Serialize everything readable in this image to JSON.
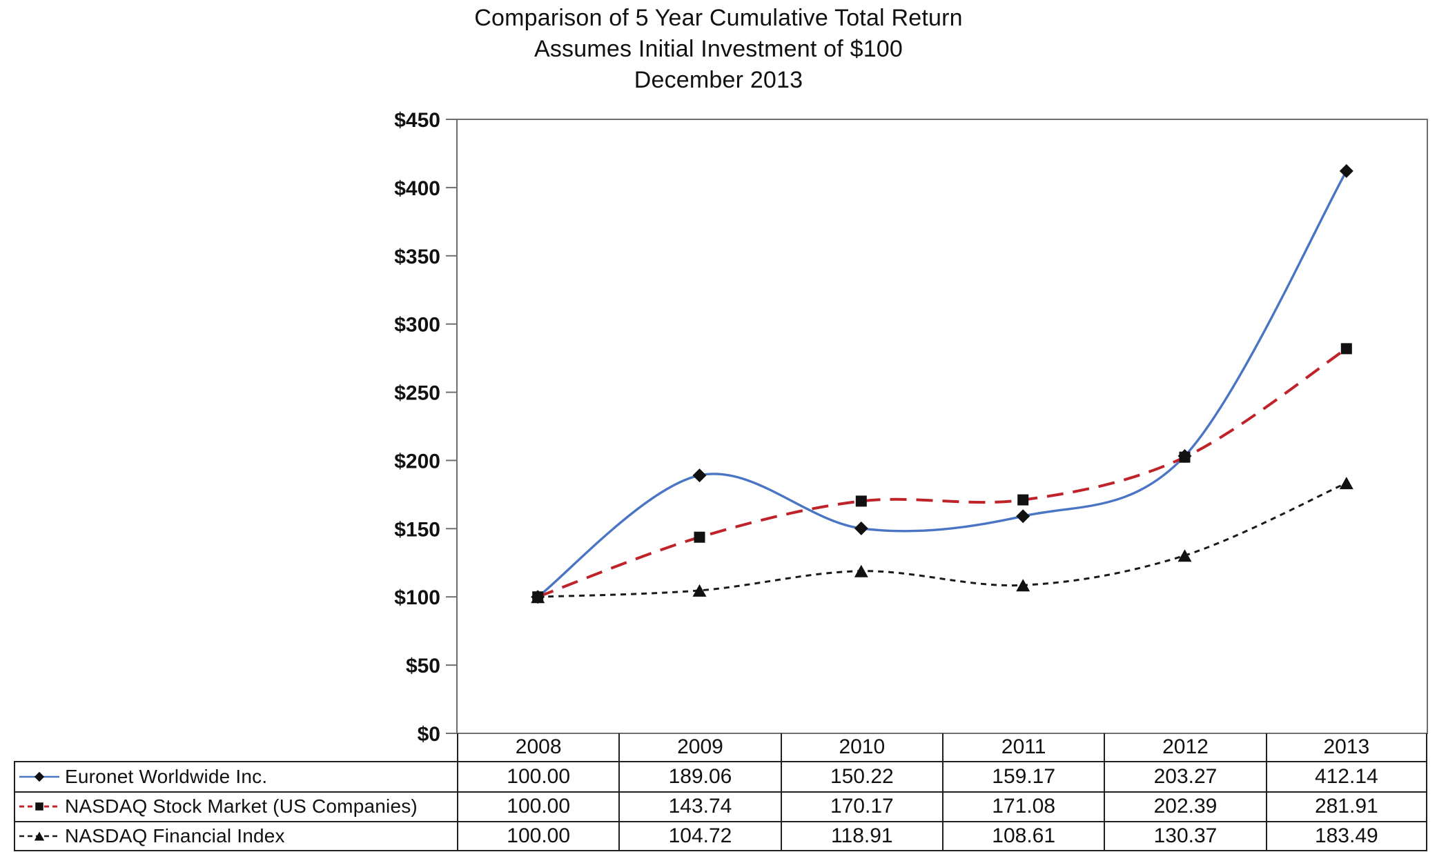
{
  "title": {
    "line1": "Comparison of 5 Year Cumulative Total Return",
    "line2": "Assumes Initial Investment of $100",
    "line3": "December 2013"
  },
  "chart_data": {
    "type": "line",
    "x": [
      "2008",
      "2009",
      "2010",
      "2011",
      "2012",
      "2013"
    ],
    "series": [
      {
        "name": "Euronet Worldwide Inc.",
        "values": [
          100.0,
          189.06,
          150.22,
          159.17,
          203.27,
          412.14
        ],
        "color": "#4a74c4",
        "line_style": "solid",
        "marker": "diamond",
        "marker_color": "#111111"
      },
      {
        "name": "NASDAQ Stock Market (US Companies)",
        "values": [
          100.0,
          143.74,
          170.17,
          171.08,
          202.39,
          281.91
        ],
        "color": "#c0222a",
        "line_style": "dashed",
        "marker": "square",
        "marker_color": "#111111"
      },
      {
        "name": "NASDAQ Financial Index",
        "values": [
          100.0,
          104.72,
          118.91,
          108.61,
          130.37,
          183.49
        ],
        "color": "#1a1a1a",
        "line_style": "dotted",
        "marker": "triangle",
        "marker_color": "#111111"
      }
    ],
    "ylim": [
      0,
      450
    ],
    "ytick_step": 50,
    "ytick_labels": [
      "$0",
      "$50",
      "$100",
      "$150",
      "$200",
      "$250",
      "$300",
      "$350",
      "$400",
      "$450"
    ],
    "currency_prefix": "$",
    "grid": false,
    "curve": "smooth",
    "legend_position": "table-rows-left",
    "axis_color": "#6e6e6e",
    "table_border_color": "#1f1f1f",
    "value_decimals": 2
  }
}
